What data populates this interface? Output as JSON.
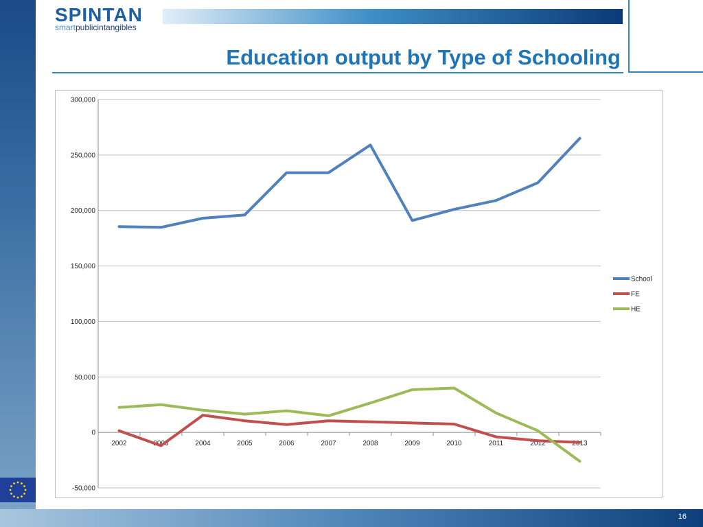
{
  "logo": {
    "main_a": "SPINTAN",
    "sub_a": "smart",
    "sub_b": "publicintangibles"
  },
  "title": "Education output by Type of Schooling",
  "page_number": "16",
  "chart_data": {
    "type": "line",
    "x": [
      "2002",
      "2003",
      "2004",
      "2005",
      "2006",
      "2007",
      "2008",
      "2009",
      "2010",
      "2011",
      "2012",
      "2013"
    ],
    "ylim": [
      -50000,
      300000
    ],
    "yticks": [
      -50000,
      0,
      50000,
      100000,
      150000,
      200000,
      250000,
      300000
    ],
    "ytick_labels": [
      "-50,000",
      "0",
      "50,000",
      "100,000",
      "150,000",
      "200,000",
      "250,000",
      "300,000"
    ],
    "grid": true,
    "legend_position": "right",
    "series": [
      {
        "name": "School",
        "color": "#4f81bd",
        "values": [
          185500,
          184800,
          193000,
          196000,
          234000,
          234000,
          259000,
          191000,
          201000,
          209000,
          225000,
          265000
        ]
      },
      {
        "name": "FE",
        "color": "#c0504d",
        "values": [
          1500,
          -12000,
          15500,
          10500,
          7000,
          10500,
          9500,
          8500,
          7500,
          -4000,
          -7500,
          -9000
        ]
      },
      {
        "name": "HE",
        "color": "#9bbb59",
        "values": [
          22500,
          25000,
          20000,
          16500,
          19500,
          15000,
          26500,
          38500,
          40000,
          17500,
          1500,
          -26000
        ]
      }
    ]
  }
}
